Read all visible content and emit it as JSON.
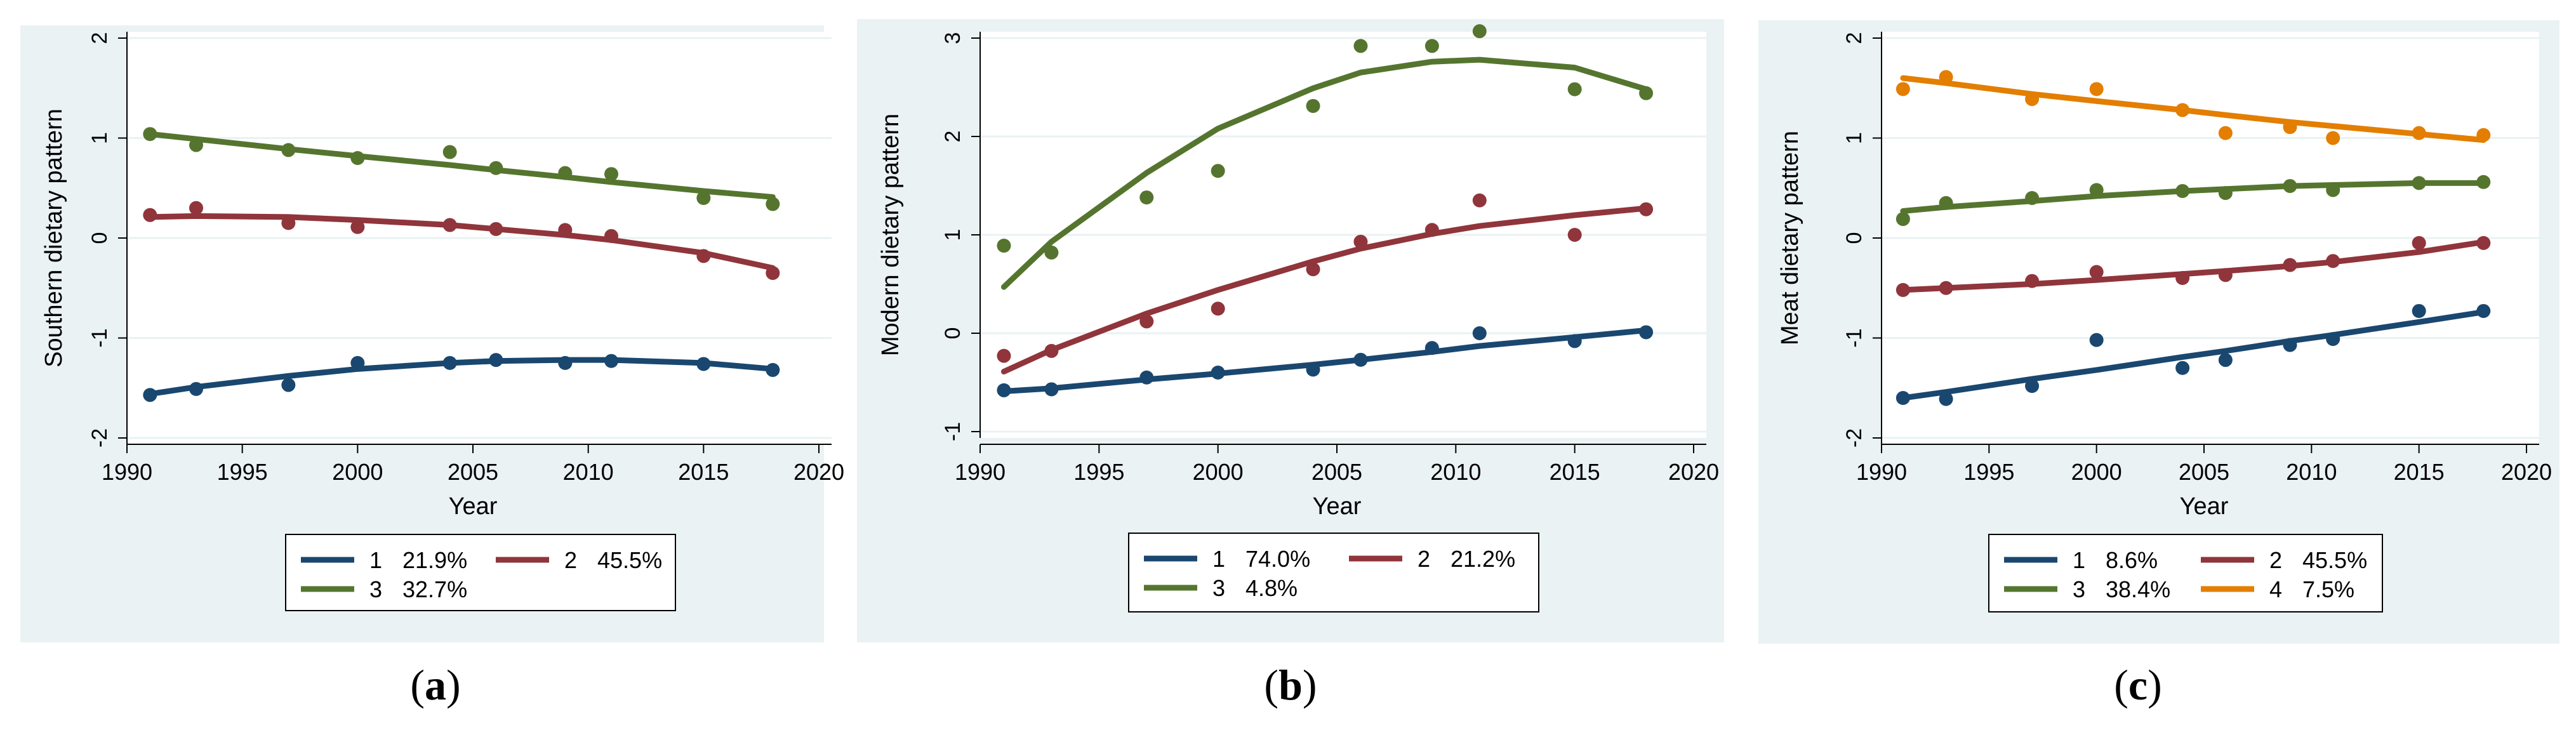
{
  "figure": {
    "captions": [
      {
        "open": "(",
        "letter": "a",
        "close": ")"
      },
      {
        "open": "(",
        "letter": "b",
        "close": ")"
      },
      {
        "open": "(",
        "letter": "c",
        "close": ")"
      }
    ]
  },
  "colors": {
    "blue": "#1a476f",
    "red": "#90353b",
    "green": "#55752f",
    "orange": "#e37e00"
  },
  "chart_data": [
    {
      "type": "scatter",
      "title": "",
      "xlabel": "Year",
      "ylabel": "Southern dietary pattern",
      "xlim": [
        1990,
        2020
      ],
      "ylim": [
        -2,
        2
      ],
      "xticks": [
        1990,
        1995,
        2000,
        2005,
        2010,
        2015,
        2020
      ],
      "yticks": [
        -2,
        -1,
        0,
        1,
        2
      ],
      "legend_position": "bottom",
      "legend_columns": 2,
      "series": [
        {
          "name": "1",
          "share": "21.9%",
          "color": "#1a476f",
          "x": [
            1991,
            1993,
            1997,
            2000,
            2004,
            2006,
            2009,
            2011,
            2015,
            2018
          ],
          "points": [
            -1.57,
            -1.51,
            -1.47,
            -1.25,
            -1.25,
            -1.22,
            -1.25,
            -1.23,
            -1.26,
            -1.32
          ],
          "fit": [
            -1.56,
            -1.49,
            -1.38,
            -1.31,
            -1.25,
            -1.23,
            -1.22,
            -1.22,
            -1.25,
            -1.31
          ]
        },
        {
          "name": "2",
          "share": "45.5%",
          "color": "#90353b",
          "x": [
            1991,
            1993,
            1997,
            2000,
            2004,
            2006,
            2009,
            2011,
            2015,
            2018
          ],
          "points": [
            0.23,
            0.3,
            0.15,
            0.11,
            0.13,
            0.09,
            0.08,
            0.02,
            -0.18,
            -0.35
          ],
          "fit": [
            0.21,
            0.22,
            0.21,
            0.18,
            0.13,
            0.09,
            0.03,
            -0.02,
            -0.15,
            -0.3
          ]
        },
        {
          "name": "3",
          "share": "32.7%",
          "color": "#55752f",
          "x": [
            1991,
            1993,
            1997,
            2000,
            2004,
            2006,
            2009,
            2011,
            2015,
            2018
          ],
          "points": [
            1.04,
            0.93,
            0.88,
            0.8,
            0.86,
            0.7,
            0.65,
            0.64,
            0.4,
            0.34
          ],
          "fit": [
            1.04,
            0.99,
            0.89,
            0.82,
            0.73,
            0.68,
            0.61,
            0.56,
            0.47,
            0.41
          ]
        }
      ]
    },
    {
      "type": "scatter",
      "title": "",
      "xlabel": "Year",
      "ylabel": "Modern dietary pattern",
      "xlim": [
        1990,
        2020
      ],
      "ylim": [
        -1,
        3
      ],
      "xticks": [
        1990,
        1995,
        2000,
        2005,
        2010,
        2015,
        2020
      ],
      "yticks": [
        -1,
        0,
        1,
        2,
        3
      ],
      "legend_position": "bottom",
      "legend_columns": 2,
      "series": [
        {
          "name": "1",
          "share": "74.0%",
          "color": "#1a476f",
          "x": [
            1991,
            1993,
            1997,
            2000,
            2004,
            2006,
            2009,
            2011,
            2015,
            2018
          ],
          "points": [
            -0.58,
            -0.57,
            -0.45,
            -0.4,
            -0.37,
            -0.27,
            -0.15,
            0.0,
            -0.08,
            0.01
          ],
          "fit": [
            -0.59,
            -0.56,
            -0.47,
            -0.41,
            -0.32,
            -0.27,
            -0.19,
            -0.13,
            -0.04,
            0.03
          ]
        },
        {
          "name": "2",
          "share": "21.2%",
          "color": "#90353b",
          "x": [
            1991,
            1993,
            1997,
            2000,
            2004,
            2006,
            2009,
            2011,
            2015,
            2018
          ],
          "points": [
            -0.23,
            -0.18,
            0.12,
            0.25,
            0.65,
            0.93,
            1.05,
            1.35,
            1.0,
            1.26
          ],
          "fit": [
            -0.39,
            -0.17,
            0.2,
            0.44,
            0.73,
            0.86,
            1.01,
            1.09,
            1.2,
            1.27
          ]
        },
        {
          "name": "3",
          "share": "4.8%",
          "color": "#55752f",
          "x": [
            1991,
            1993,
            1997,
            2000,
            2004,
            2006,
            2009,
            2011,
            2015,
            2018
          ],
          "points": [
            0.89,
            0.82,
            1.38,
            1.65,
            2.31,
            2.92,
            2.92,
            3.07,
            2.48,
            2.44
          ],
          "fit": [
            0.47,
            0.93,
            1.63,
            2.08,
            2.49,
            2.65,
            2.76,
            2.78,
            2.7,
            2.48
          ]
        }
      ]
    },
    {
      "type": "scatter",
      "title": "",
      "xlabel": "Year",
      "ylabel": "Meat dietary pattern",
      "xlim": [
        1990,
        2020
      ],
      "ylim": [
        -2,
        2
      ],
      "xticks": [
        1990,
        1995,
        2000,
        2005,
        2010,
        2015,
        2020
      ],
      "yticks": [
        -2,
        -1,
        0,
        1,
        2
      ],
      "legend_position": "bottom",
      "legend_columns": 2,
      "series": [
        {
          "name": "1",
          "share": "8.6%",
          "color": "#1a476f",
          "x": [
            1991,
            1993,
            1997,
            2000,
            2004,
            2006,
            2009,
            2011,
            2015,
            2018
          ],
          "points": [
            -1.6,
            -1.61,
            -1.48,
            -1.02,
            -1.3,
            -1.22,
            -1.07,
            -1.01,
            -0.73,
            -0.73
          ],
          "fit": [
            -1.6,
            -1.54,
            -1.41,
            -1.32,
            -1.19,
            -1.13,
            -1.03,
            -0.97,
            -0.84,
            -0.74
          ]
        },
        {
          "name": "2",
          "share": "45.5%",
          "color": "#90353b",
          "x": [
            1991,
            1993,
            1997,
            2000,
            2004,
            2006,
            2009,
            2011,
            2015,
            2018
          ],
          "points": [
            -0.52,
            -0.5,
            -0.43,
            -0.34,
            -0.4,
            -0.37,
            -0.27,
            -0.23,
            -0.05,
            -0.05
          ],
          "fit": [
            -0.52,
            -0.5,
            -0.46,
            -0.42,
            -0.36,
            -0.33,
            -0.28,
            -0.24,
            -0.14,
            -0.04
          ]
        },
        {
          "name": "3",
          "share": "38.4%",
          "color": "#55752f",
          "x": [
            1991,
            1993,
            1997,
            2000,
            2004,
            2006,
            2009,
            2011,
            2015,
            2018
          ],
          "points": [
            0.19,
            0.35,
            0.4,
            0.48,
            0.47,
            0.45,
            0.52,
            0.48,
            0.55,
            0.56
          ],
          "fit": [
            0.27,
            0.31,
            0.37,
            0.42,
            0.47,
            0.49,
            0.52,
            0.53,
            0.55,
            0.55
          ]
        },
        {
          "name": "4",
          "share": "7.5%",
          "color": "#e37e00",
          "x": [
            1991,
            1993,
            1997,
            2000,
            2004,
            2006,
            2009,
            2011,
            2015,
            2018
          ],
          "points": [
            1.49,
            1.61,
            1.39,
            1.49,
            1.28,
            1.05,
            1.11,
            1.0,
            1.05,
            1.03
          ],
          "fit": [
            1.6,
            1.55,
            1.44,
            1.37,
            1.28,
            1.23,
            1.16,
            1.12,
            1.04,
            0.98
          ]
        }
      ]
    }
  ]
}
